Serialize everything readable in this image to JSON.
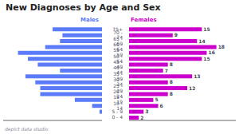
{
  "chart_data": [
    {
      "type": "bar",
      "title": "New Diagnoses by Age and Sex",
      "subtitle": "Males",
      "orientation": "horizontal",
      "categories": [
        "0 - 4",
        "5 - 9",
        "10 - 14",
        "15 - 19",
        "20 - 24",
        "25 - 29",
        "30 - 34",
        "35 - 39",
        "40 - 44",
        "45 - 49",
        "50 - 54",
        "55 - 59",
        "60 - 64",
        "65 - 69",
        "70 - 74",
        "75+"
      ],
      "values": [
        0,
        1,
        4,
        11,
        25,
        25,
        27,
        31,
        17,
        26,
        30,
        34,
        23,
        17,
        16,
        20
      ],
      "color": "#5B7BF8",
      "xlim": [
        0,
        40
      ],
      "grid": false,
      "data_labels": true,
      "tick_labels": false
    },
    {
      "type": "bar",
      "subtitle": "Females",
      "orientation": "horizontal",
      "categories": [
        "0 - 4",
        "5 - 9",
        "10 - 14",
        "15 - 19",
        "20 - 24",
        "25 - 29",
        "30 - 34",
        "35 - 39",
        "40 - 44",
        "45 - 49",
        "50 - 54",
        "55 - 59",
        "60 - 64",
        "65 - 69",
        "70 - 74",
        "75+"
      ],
      "values": [
        2,
        3,
        6,
        5,
        8,
        12,
        8,
        13,
        7,
        8,
        15,
        16,
        18,
        14,
        9,
        15
      ],
      "color": "#CC00CC",
      "xlim": [
        0,
        22
      ],
      "grid": false,
      "data_labels": true,
      "tick_labels": "y",
      "annotations": [
        "depict data studio"
      ]
    }
  ]
}
